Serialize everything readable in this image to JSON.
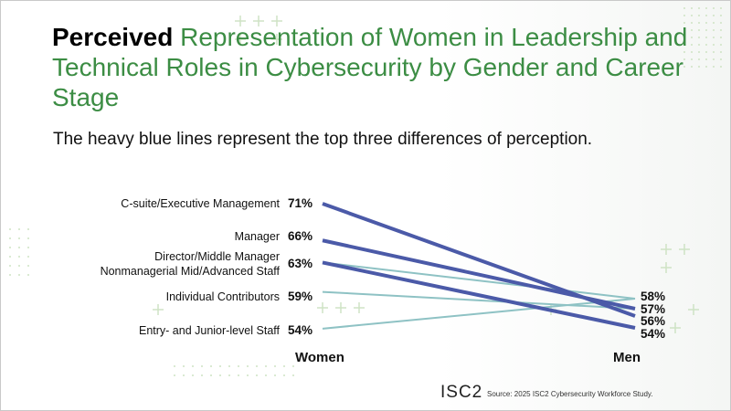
{
  "title": {
    "bold": "Perceived",
    "rest": "Representation of Women in Leadership and Technical Roles in Cybersecurity by Gender and Career Stage"
  },
  "subtitle": "The heavy blue lines represent the top three differences of perception.",
  "logo": "ISC2",
  "source": "Source: 2025 ISC2 Cybersecurity Workforce Study.",
  "colors": {
    "title_green": "#3c8d44",
    "heavy_line": "#4b5aa8",
    "light_line": "#8ec2c4",
    "deco_green": "#cfe3c5"
  },
  "chart_data": {
    "type": "line",
    "x": [
      "Women",
      "Men"
    ],
    "ylabel_note": "",
    "series": [
      {
        "name": "C-suite/Executive Management",
        "values": [
          71,
          56
        ],
        "label_left": "71%",
        "emphasis": true
      },
      {
        "name": "Manager",
        "values": [
          66,
          57
        ],
        "label_left": "66%",
        "emphasis": true
      },
      {
        "name": "Director/Middle Manager",
        "values": [
          63,
          54
        ],
        "label_left": "63%",
        "emphasis": true
      },
      {
        "name": "Nonmanagerial Mid/Advanced Staff",
        "values": [
          63,
          58
        ],
        "label_left": "63%",
        "emphasis": false
      },
      {
        "name": "Individual Contributors",
        "values": [
          59,
          57
        ],
        "label_left": "59%",
        "emphasis": false
      },
      {
        "name": "Entry- and Junior-level Staff",
        "values": [
          54,
          58
        ],
        "label_left": "54%",
        "emphasis": false
      }
    ],
    "left_category_labels": [
      {
        "text": "C-suite/Executive Management",
        "value": "71%"
      },
      {
        "text": "Manager",
        "value": "66%"
      },
      {
        "text": "Director/Middle Manager",
        "value": "63%"
      },
      {
        "text": "Nonmanagerial Mid/Advanced Staff",
        "value": ""
      },
      {
        "text": "Individual Contributors",
        "value": "59%"
      },
      {
        "text": "Entry- and Junior-level Staff",
        "value": "54%"
      }
    ],
    "right_value_labels": [
      "58%",
      "57%",
      "56%",
      "54%"
    ]
  }
}
